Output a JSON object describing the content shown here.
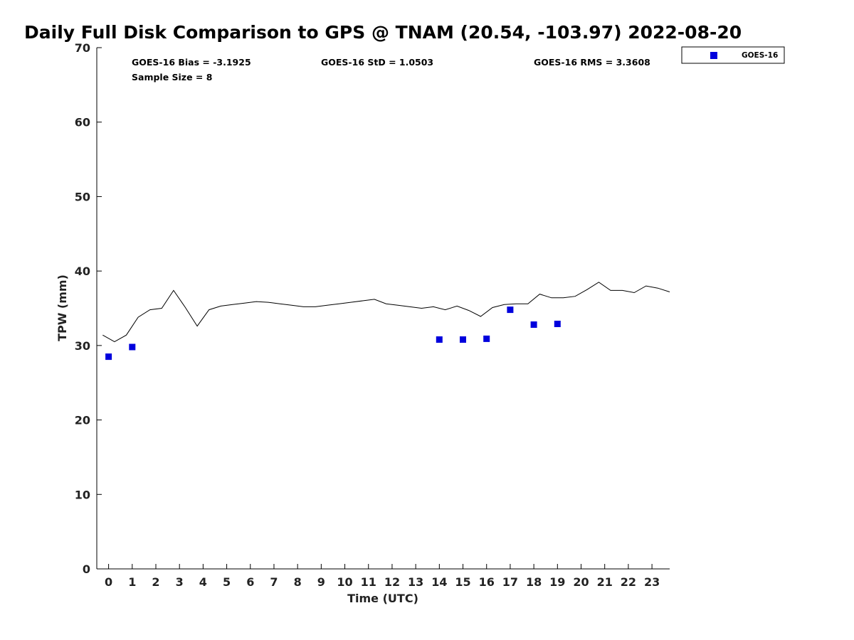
{
  "chart_data": {
    "type": "scatter",
    "title": "Daily Full Disk Comparison to GPS @ TNAM (20.54, -103.97) 2022-08-20",
    "xlabel": "Time (UTC)",
    "ylabel": "TPW (mm)",
    "xlim": [
      -0.5,
      23.75
    ],
    "ylim": [
      0,
      70
    ],
    "x_ticks": [
      "0",
      "1",
      "2",
      "3",
      "4",
      "5",
      "6",
      "7",
      "8",
      "9",
      "10",
      "11",
      "12",
      "13",
      "14",
      "15",
      "16",
      "17",
      "18",
      "19",
      "20",
      "21",
      "22",
      "23"
    ],
    "y_ticks": [
      "0",
      "10",
      "20",
      "30",
      "40",
      "50",
      "60",
      "70"
    ],
    "grid": false,
    "legend_position": "top-right, outside plot",
    "stats": {
      "bias": "GOES-16 Bias = -3.1925",
      "std": "GOES-16 StD = 1.0503",
      "rms": "GOES-16 RMS = 3.3608",
      "sample": "Sample Size = 8"
    },
    "series": [
      {
        "name": "GOES-16",
        "marker": "square",
        "color": "#0000dd",
        "x": [
          0,
          1,
          14,
          15,
          16,
          17,
          18,
          19
        ],
        "y": [
          28.5,
          29.8,
          30.8,
          30.8,
          30.9,
          34.8,
          32.8,
          32.9
        ]
      },
      {
        "kind": "line",
        "color": "#000000",
        "x": [
          -0.25,
          0.25,
          0.75,
          1.25,
          1.75,
          2.25,
          2.75,
          3.25,
          3.75,
          4.25,
          4.75,
          5.25,
          5.75,
          6.25,
          6.75,
          7.25,
          7.75,
          8.25,
          8.75,
          9.25,
          9.75,
          10.25,
          10.75,
          11.25,
          11.75,
          12.25,
          12.75,
          13.25,
          13.75,
          14.25,
          14.75,
          15.25,
          15.75,
          16.25,
          16.75,
          17.25,
          17.75,
          18.25,
          18.75,
          19.25,
          19.75,
          20.25,
          20.75,
          21.25,
          21.75,
          22.25,
          22.75,
          23.25,
          23.75
        ],
        "y": [
          31.4,
          30.5,
          31.4,
          33.8,
          34.8,
          35.0,
          37.4,
          35.1,
          32.6,
          34.8,
          35.3,
          35.5,
          35.7,
          35.9,
          35.8,
          35.6,
          35.4,
          35.2,
          35.2,
          35.4,
          35.6,
          35.8,
          36.0,
          36.2,
          35.6,
          35.4,
          35.2,
          35.0,
          35.2,
          34.8,
          35.3,
          34.7,
          33.9,
          35.1,
          35.5,
          35.6,
          35.6,
          36.9,
          36.4,
          36.4,
          36.6,
          37.5,
          38.5,
          37.4,
          37.4,
          37.1,
          38.0,
          37.7,
          37.2
        ]
      }
    ]
  }
}
